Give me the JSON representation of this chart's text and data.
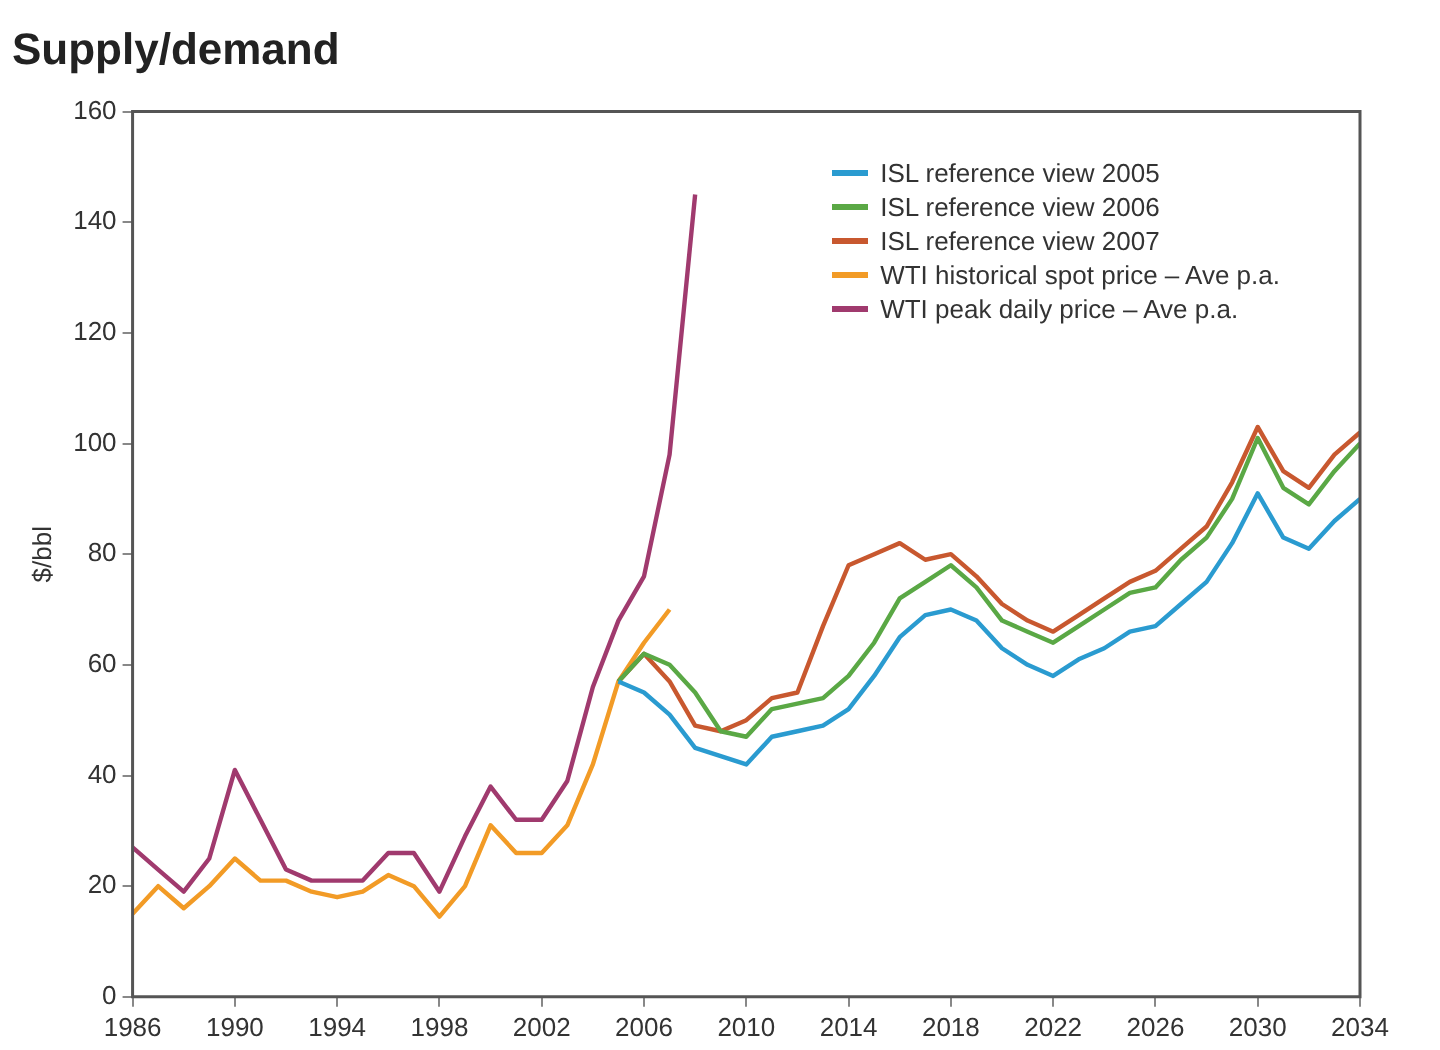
{
  "chart_data": {
    "type": "line",
    "title": "Supply/demand",
    "ylabel": "$/bbl",
    "xlim": [
      1986,
      2034
    ],
    "xticks": [
      1986,
      1990,
      1994,
      1998,
      2002,
      2006,
      2010,
      2014,
      2018,
      2022,
      2026,
      2030,
      2034
    ],
    "ylim": [
      0,
      160
    ],
    "yticks": [
      0,
      20,
      40,
      60,
      80,
      100,
      120,
      140,
      160
    ],
    "grid": false,
    "legend": "top right",
    "marker": "none",
    "line_style": "solid",
    "series": [
      {
        "name": "ISL reference view 2005",
        "color": "#2a9bd0",
        "x": [
          2005,
          2006,
          2007,
          2008,
          2009,
          2010,
          2011,
          2012,
          2013,
          2014,
          2015,
          2016,
          2017,
          2018,
          2019,
          2020,
          2021,
          2022,
          2023,
          2024,
          2025,
          2026,
          2027,
          2028,
          2029,
          2030,
          2031,
          2032,
          2033,
          2034
        ],
        "values": [
          57,
          55,
          51,
          45,
          43.5,
          42,
          47,
          48,
          49,
          52,
          58,
          65,
          69,
          70,
          68,
          63,
          60,
          58,
          61,
          63,
          66,
          67,
          71,
          75,
          82,
          91,
          83,
          81,
          86,
          90
        ]
      },
      {
        "name": "ISL reference view 2006",
        "color": "#5aa845",
        "x": [
          2005,
          2006,
          2007,
          2008,
          2009,
          2010,
          2011,
          2012,
          2013,
          2014,
          2015,
          2016,
          2017,
          2018,
          2019,
          2020,
          2021,
          2022,
          2023,
          2024,
          2025,
          2026,
          2027,
          2028,
          2029,
          2030,
          2031,
          2032,
          2033,
          2034
        ],
        "values": [
          57,
          62,
          60,
          55,
          48,
          47,
          52,
          53,
          54,
          58,
          64,
          72,
          75,
          78,
          74,
          68,
          66,
          64,
          67,
          70,
          73,
          74,
          79,
          83,
          90,
          101,
          92,
          89,
          95,
          100
        ]
      },
      {
        "name": "ISL reference view 2007",
        "color": "#c8582f",
        "x": [
          2005,
          2006,
          2007,
          2008,
          2009,
          2010,
          2011,
          2012,
          2013,
          2014,
          2015,
          2016,
          2017,
          2018,
          2019,
          2020,
          2021,
          2022,
          2023,
          2024,
          2025,
          2026,
          2027,
          2028,
          2029,
          2030,
          2031,
          2032,
          2033,
          2034
        ],
        "values": [
          57,
          62,
          57,
          49,
          48,
          50,
          54,
          55,
          67,
          78,
          80,
          82,
          79,
          80,
          76,
          71,
          68,
          66,
          69,
          72,
          75,
          77,
          81,
          85,
          93,
          103,
          95,
          92,
          98,
          102
        ]
      },
      {
        "name": "WTI historical spot price – Ave p.a.",
        "color": "#f29b26",
        "x": [
          1986,
          1987,
          1988,
          1989,
          1990,
          1991,
          1992,
          1993,
          1994,
          1995,
          1996,
          1997,
          1998,
          1999,
          2000,
          2001,
          2002,
          2003,
          2004,
          2005,
          2006,
          2007
        ],
        "values": [
          15,
          20,
          16,
          20,
          25,
          21,
          21,
          19,
          18,
          19,
          22,
          20,
          14.5,
          20,
          31,
          26,
          26,
          31,
          42,
          57,
          64,
          70
        ]
      },
      {
        "name": "WTI peak daily price – Ave p.a.",
        "color": "#a03a6e",
        "x": [
          1986,
          1987,
          1988,
          1989,
          1990,
          1991,
          1992,
          1993,
          1994,
          1995,
          1996,
          1997,
          1998,
          1999,
          2000,
          2001,
          2002,
          2003,
          2004,
          2005,
          2006,
          2007,
          2008
        ],
        "values": [
          27,
          23,
          19,
          25,
          41,
          32,
          23,
          21,
          21,
          21,
          26,
          26,
          19,
          29,
          38,
          32,
          32,
          39,
          56,
          68,
          76,
          98,
          145
        ]
      }
    ]
  }
}
